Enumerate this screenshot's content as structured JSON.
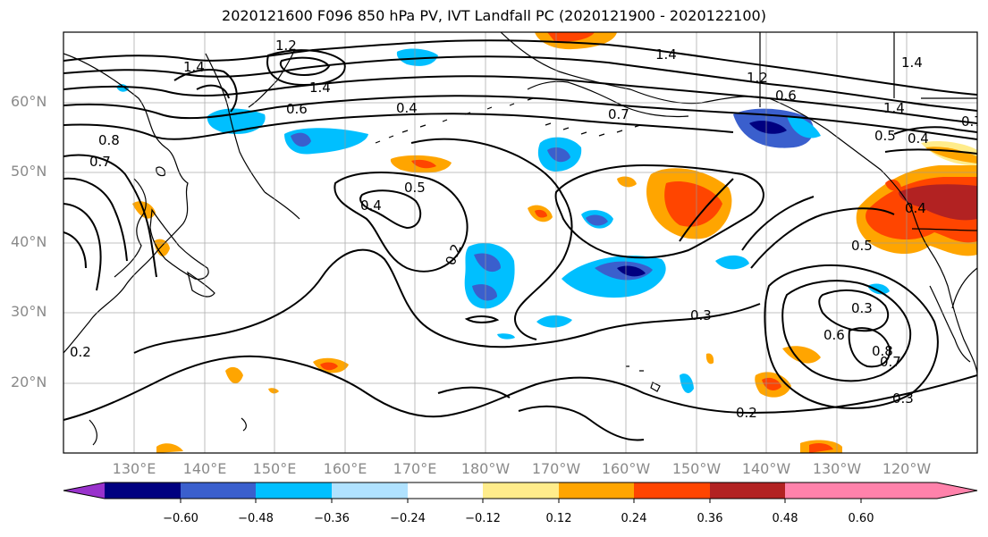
{
  "title": "2020121600 F096 850 hPa PV, IVT Landfall PC (2020121900 - 2020122100)",
  "lat_labels": [
    "60°N",
    "50°N",
    "40°N",
    "30°N",
    "20°N"
  ],
  "lon_labels": [
    "130°E",
    "140°E",
    "150°E",
    "160°E",
    "170°E",
    "180°W",
    "170°W",
    "160°W",
    "150°W",
    "140°W",
    "130°W",
    "120°W"
  ],
  "colorbar": {
    "ticks": [
      "−0.60",
      "−0.48",
      "−0.36",
      "−0.24",
      "−0.12",
      "0.12",
      "0.24",
      "0.36",
      "0.48",
      "0.60"
    ],
    "colors": [
      "#9932cc",
      "#000080",
      "#3a5fcd",
      "#00bfff",
      "#b0e2ff",
      "#ffffff",
      "#ffec8b",
      "#ffa500",
      "#ff4500",
      "#b22222",
      "#ff82ab"
    ]
  },
  "contour_labels": [
    "1.2",
    "1.4",
    "1.4",
    "0.6",
    "0.4",
    "0.8",
    "0.7",
    "0.7",
    "1.4",
    "1.2",
    "0.6",
    "0.7",
    "1.4",
    "0.5",
    "0.4",
    "0.5",
    "0.4",
    "0.2",
    "0.4",
    "0.5",
    "0.3",
    "0.3",
    "0.6",
    "0.8",
    "0.7",
    "0.3",
    "0.2",
    "0.2",
    "1.4"
  ]
}
